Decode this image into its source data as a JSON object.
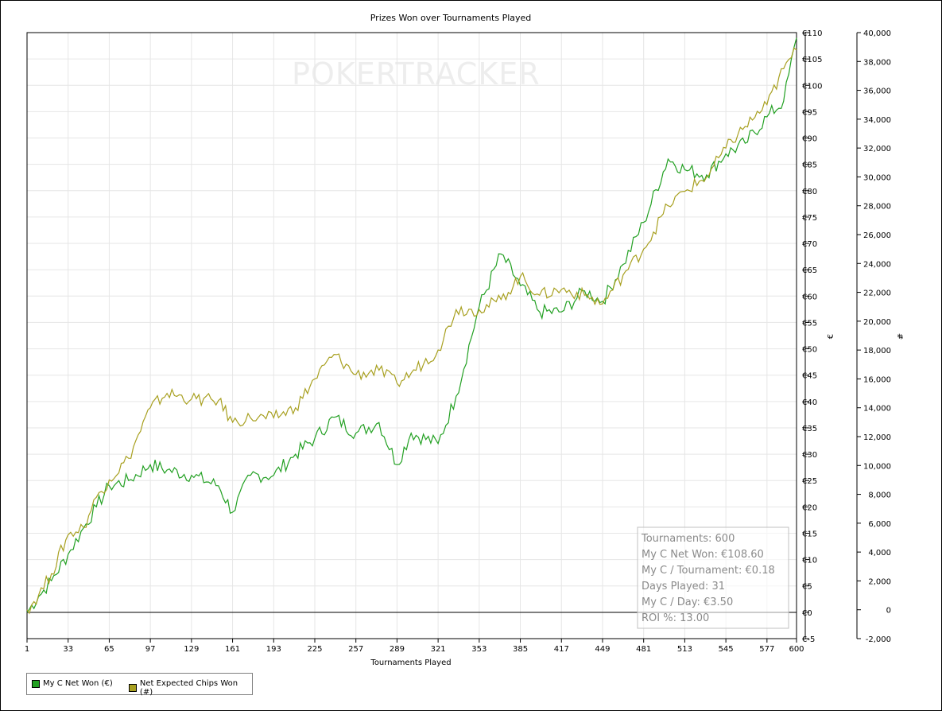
{
  "chart_data": {
    "type": "line",
    "title": "Prizes Won over Tournaments Played",
    "xlabel": "Tournaments Played",
    "ylabel_left": "€",
    "ylabel_right": "#",
    "xlim": [
      1,
      600
    ],
    "ylim_left": [
      -5,
      110
    ],
    "ylim_right": [
      -2000,
      40000
    ],
    "x_ticks": [
      1,
      33,
      65,
      97,
      129,
      161,
      193,
      225,
      257,
      289,
      321,
      353,
      385,
      417,
      449,
      481,
      513,
      545,
      577,
      600
    ],
    "y_ticks_left": [
      "€-5",
      "€0",
      "€5",
      "€10",
      "€15",
      "€20",
      "€25",
      "€30",
      "€35",
      "€40",
      "€45",
      "€50",
      "€55",
      "€60",
      "€65",
      "€70",
      "€75",
      "€80",
      "€85",
      "€90",
      "€95",
      "€100",
      "€105",
      "€110"
    ],
    "y_ticks_right": [
      "-2,000",
      "0",
      "2,000",
      "4,000",
      "6,000",
      "8,000",
      "10,000",
      "12,000",
      "14,000",
      "16,000",
      "18,000",
      "20,000",
      "22,000",
      "24,000",
      "26,000",
      "28,000",
      "30,000",
      "32,000",
      "34,000",
      "36,000",
      "38,000",
      "40,000"
    ],
    "grid": true,
    "legend_position": "bottom-left",
    "watermark": "POKERTRACKER",
    "series": [
      {
        "name": "My C Net Won (€)",
        "axis": "left",
        "color": "#22a022",
        "x": [
          1,
          10,
          20,
          33,
          45,
          55,
          65,
          80,
          97,
          110,
          129,
          150,
          161,
          175,
          193,
          210,
          225,
          240,
          257,
          275,
          289,
          300,
          321,
          335,
          353,
          370,
          385,
          400,
          417,
          435,
          449,
          465,
          481,
          500,
          513,
          530,
          545,
          560,
          577,
          590,
          600
        ],
        "y": [
          0,
          3,
          6,
          11,
          16,
          20,
          24,
          25,
          28,
          27,
          26,
          24,
          19,
          26,
          26,
          30,
          33,
          37,
          34,
          36,
          28,
          34,
          32,
          41,
          58,
          68,
          62,
          57,
          57,
          61,
          59,
          66,
          74,
          86,
          84,
          83,
          87,
          89,
          94,
          97,
          109
        ]
      },
      {
        "name": "Net Expected Chips Won (#)",
        "axis": "right",
        "color": "#a8a020",
        "x": [
          1,
          10,
          20,
          33,
          45,
          55,
          65,
          80,
          97,
          110,
          129,
          150,
          161,
          175,
          193,
          210,
          225,
          240,
          257,
          275,
          289,
          300,
          321,
          335,
          353,
          370,
          385,
          400,
          417,
          435,
          449,
          465,
          481,
          500,
          513,
          530,
          545,
          560,
          577,
          590,
          600
        ],
        "y": [
          0,
          1000,
          2500,
          5200,
          5700,
          7800,
          9000,
          10500,
          14000,
          15000,
          14600,
          14500,
          13000,
          13300,
          13300,
          14000,
          16000,
          17700,
          16300,
          16600,
          15700,
          16400,
          18000,
          20800,
          20800,
          21500,
          23100,
          21800,
          22200,
          21800,
          21200,
          23200,
          25000,
          28000,
          29000,
          30000,
          32000,
          33500,
          35000,
          37500,
          38800
        ]
      }
    ],
    "stats_box": [
      "Tournaments: 600",
      "My C Net Won: €108.60",
      "My C / Tournament: €0.18",
      "Days Played: 31",
      "My C / Day: €3.50",
      "ROI %: 13.00"
    ]
  }
}
